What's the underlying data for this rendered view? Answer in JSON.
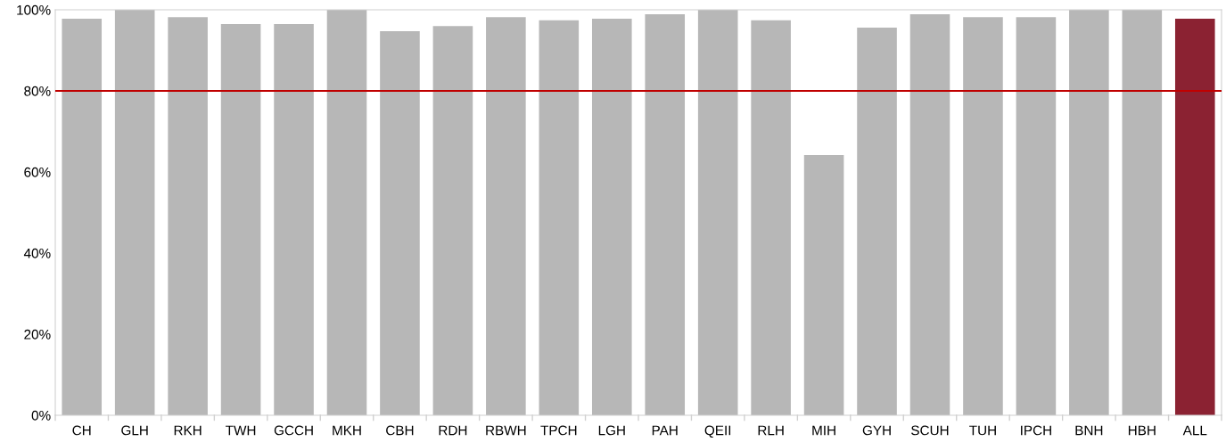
{
  "chart_data": {
    "type": "bar",
    "categories": [
      "CH",
      "GLH",
      "RKH",
      "TWH",
      "GCCH",
      "MKH",
      "CBH",
      "RDH",
      "RBWH",
      "TPCH",
      "LGH",
      "PAH",
      "QEII",
      "RLH",
      "MIH",
      "GYH",
      "SCUH",
      "TUH",
      "IPCH",
      "BNH",
      "HBH",
      "ALL"
    ],
    "values": [
      97.8,
      100,
      98.2,
      96.5,
      96.5,
      100,
      94.7,
      96.0,
      98.2,
      97.4,
      97.8,
      98.9,
      100,
      97.4,
      64.2,
      95.6,
      98.9,
      98.2,
      98.2,
      100,
      100,
      97.8
    ],
    "colors": [
      "#b7b7b7",
      "#b7b7b7",
      "#b7b7b7",
      "#b7b7b7",
      "#b7b7b7",
      "#b7b7b7",
      "#b7b7b7",
      "#b7b7b7",
      "#b7b7b7",
      "#b7b7b7",
      "#b7b7b7",
      "#b7b7b7",
      "#b7b7b7",
      "#b7b7b7",
      "#b7b7b7",
      "#b7b7b7",
      "#b7b7b7",
      "#b7b7b7",
      "#b7b7b7",
      "#b7b7b7",
      "#b7b7b7",
      "#8b2232"
    ],
    "ylim": [
      0,
      100
    ],
    "yticks": [
      {
        "value": 0,
        "label": "0%"
      },
      {
        "value": 20,
        "label": "20%"
      },
      {
        "value": 40,
        "label": "40%"
      },
      {
        "value": 60,
        "label": "60%"
      },
      {
        "value": 80,
        "label": "80%"
      },
      {
        "value": 100,
        "label": "100%"
      }
    ],
    "ref_lines": [
      {
        "axis": "y",
        "value": 80,
        "color": "#c00000"
      }
    ],
    "grid": false
  }
}
